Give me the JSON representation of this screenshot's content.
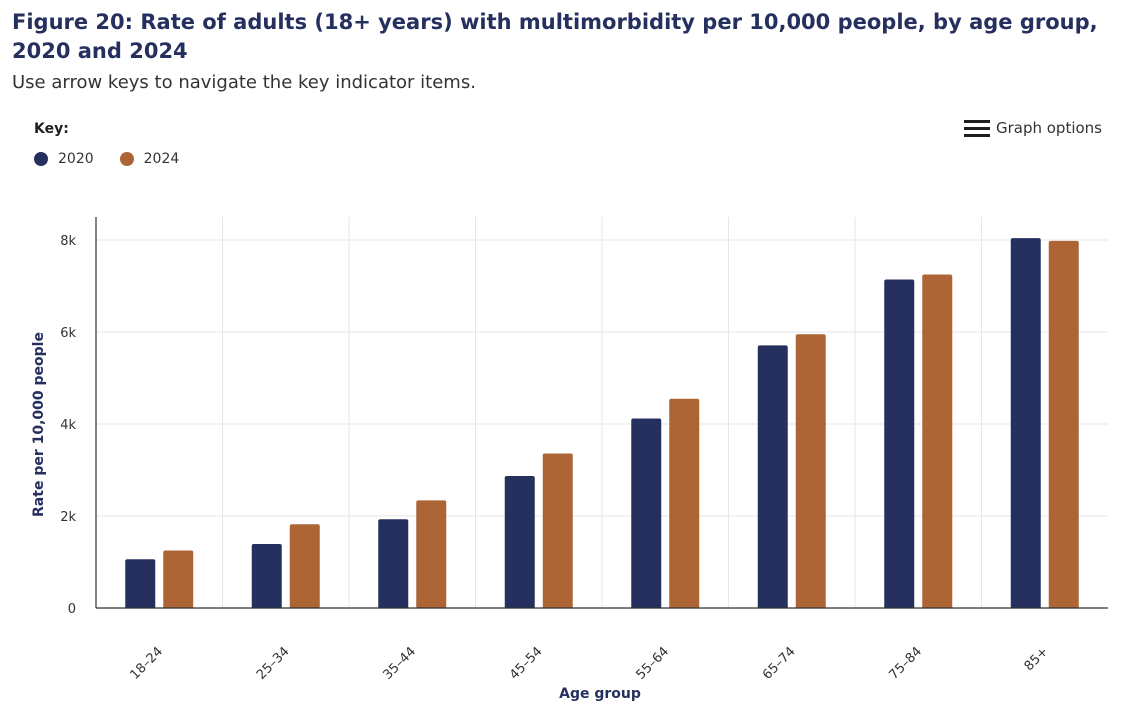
{
  "header": {
    "title": "Figure 20: Rate of adults (18+ years) with multimorbidity per 10,000 people, by age group, 2020 and 2024",
    "subtitle": "Use arrow keys to navigate the key indicator items."
  },
  "legend": {
    "title": "Key:",
    "items": [
      {
        "label": "2020",
        "color": "#25305f"
      },
      {
        "label": "2024",
        "color": "#ad6535"
      }
    ]
  },
  "graph_options": {
    "label": "Graph options",
    "icon": "hamburger-menu-icon"
  },
  "chart_data": {
    "type": "bar",
    "xlabel": "Age group",
    "ylabel": "Rate per 10,000 people",
    "categories": [
      "18–24",
      "25–34",
      "35–44",
      "45–54",
      "55–64",
      "65–74",
      "75–84",
      "85+"
    ],
    "series": [
      {
        "name": "2020",
        "color": "#25305f",
        "values": [
          1060,
          1390,
          1930,
          2870,
          4120,
          5710,
          7140,
          8040
        ]
      },
      {
        "name": "2024",
        "color": "#ad6535",
        "values": [
          1250,
          1820,
          2340,
          3360,
          4550,
          5950,
          7250,
          7980
        ]
      }
    ],
    "ylim": [
      0,
      8500
    ],
    "yticks": [
      {
        "value": 0,
        "label": "0"
      },
      {
        "value": 2000,
        "label": "2k"
      },
      {
        "value": 4000,
        "label": "4k"
      },
      {
        "value": 6000,
        "label": "6k"
      },
      {
        "value": 8000,
        "label": "8k"
      }
    ],
    "grid": true,
    "legend_position": "top-left"
  }
}
